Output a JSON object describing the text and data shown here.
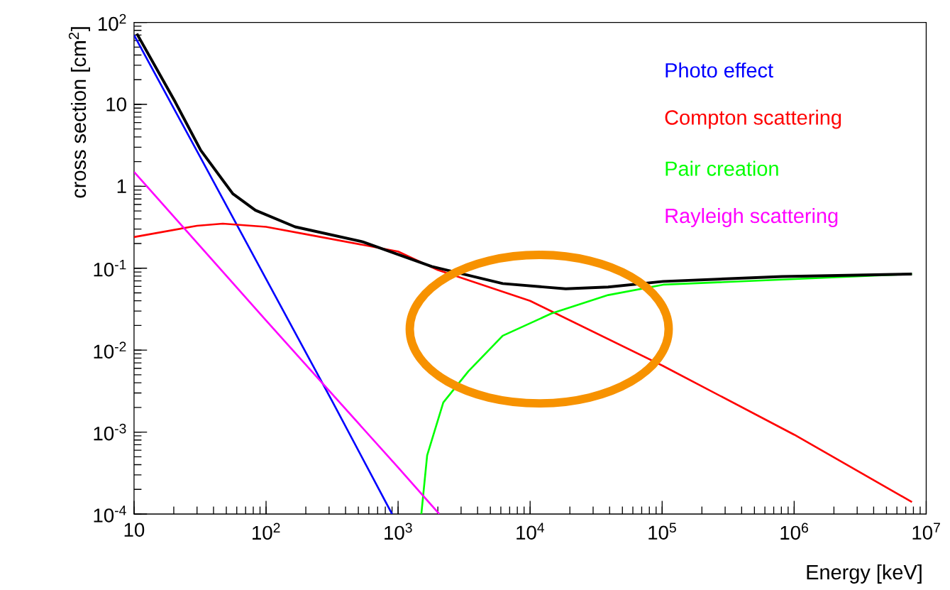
{
  "chart_data": {
    "type": "line",
    "xlabel": "Energy [keV]",
    "ylabel": "cross section [cm$^{2}$]",
    "log": "xy",
    "legend": "top right",
    "marker": "none",
    "line_style": "solid",
    "xlim": [
      10,
      10000000
    ],
    "ylim": [
      0.0001,
      100
    ],
    "xticks": [
      10,
      {
        "value": 100,
        "label": "10$^{2}$"
      },
      {
        "value": 1000,
        "label": "10$^{3}$"
      },
      {
        "value": 10000,
        "label": "10$^{4}$"
      },
      {
        "value": 100000,
        "label": "10$^{5}$"
      },
      {
        "value": 1000000,
        "label": "10$^{6}$"
      },
      {
        "value": 10000000,
        "label": "10$^{7}$"
      }
    ],
    "yticks": [
      {
        "value": 0.0001,
        "label": "10$^{-4}$"
      },
      {
        "value": 0.001,
        "label": "10$^{-3}$"
      },
      {
        "value": 0.01,
        "label": "10$^{-2}$"
      },
      {
        "value": 0.1,
        "label": "10$^{-1}$"
      },
      1,
      10,
      {
        "value": 100,
        "label": "10$^{2}$"
      }
    ],
    "series": [
      {
        "name": "Photo effect",
        "color": "#0000ff",
        "x": [
          10,
          31.6,
          100,
          316,
          900
        ],
        "values": [
          70,
          2.3,
          0.074,
          0.0024,
          0.0001
        ]
      },
      {
        "name": "Compton scattering",
        "color": "#ff0000",
        "x": [
          10,
          30,
          47,
          100,
          200,
          1000,
          2000,
          10000,
          100000,
          1000000,
          7800000
        ],
        "values": [
          0.24,
          0.33,
          0.35,
          0.32,
          0.26,
          0.16,
          0.095,
          0.04,
          0.0065,
          0.00093,
          0.00014
        ]
      },
      {
        "name": "Pair creation",
        "color": "#00ff00",
        "x": [
          1500,
          1660,
          2200,
          3400,
          6200,
          14500,
          39000,
          102000,
          810000,
          7800000
        ],
        "values": [
          0.0001,
          0.00052,
          0.0023,
          0.0055,
          0.015,
          0.028,
          0.047,
          0.063,
          null,
          0.085
        ]
      },
      {
        "name": "Rayleigh scattering",
        "color": "#ff00ff",
        "x": [
          10,
          100,
          1000,
          2050
        ],
        "values": [
          1.5,
          0.023,
          0.00037,
          0.0001
        ]
      },
      {
        "color": "#000000",
        "x": [
          10.5,
          20.5,
          32,
          56,
          83,
          166,
          540,
          1800,
          6200,
          18600,
          39000,
          102000,
          810000,
          7800000
        ],
        "values": [
          73,
          10.7,
          2.75,
          0.81,
          0.51,
          0.32,
          0.21,
          0.105,
          0.065,
          0.056,
          0.059,
          0.069,
          0.079,
          0.085
        ]
      }
    ]
  }
}
